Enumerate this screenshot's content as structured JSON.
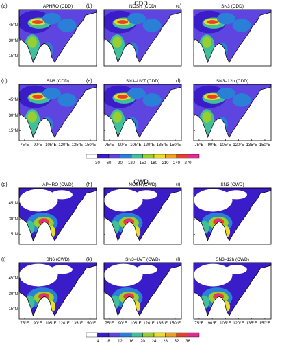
{
  "figure": {
    "sections": [
      {
        "title": "CDD",
        "panels": [
          {
            "tag": "(a)",
            "name": "APHRO (CDD)"
          },
          {
            "tag": "(b)",
            "name": "NOSH (CDD)"
          },
          {
            "tag": "(c)",
            "name": "SN3 (CDD)"
          },
          {
            "tag": "(d)",
            "name": "SN6 (CDD)"
          },
          {
            "tag": "(e)",
            "name": "SN3–UVT (CDD)"
          },
          {
            "tag": "(f)",
            "name": "SN3–12h (CDD)"
          }
        ],
        "colorbar": {
          "ticks": [
            "30",
            "60",
            "90",
            "120",
            "150",
            "180",
            "210",
            "240",
            "270"
          ],
          "colors": [
            "#ffffff",
            "#3a1cc8",
            "#5f45e0",
            "#2a7fd6",
            "#3fbf9a",
            "#96cf2f",
            "#e8dd24",
            "#f0a020",
            "#e8402c",
            "#e22a90"
          ]
        }
      },
      {
        "title": "CWD",
        "panels": [
          {
            "tag": "(g)",
            "name": "APHRO (CWD)"
          },
          {
            "tag": "(h)",
            "name": "NOSH (CWD)"
          },
          {
            "tag": "(i)",
            "name": "SN3 (CWD)"
          },
          {
            "tag": "(j)",
            "name": "SN6 (CWD)"
          },
          {
            "tag": "(k)",
            "name": "SN3–UVT (CWD)"
          },
          {
            "tag": "(l)",
            "name": "SN3–12h (CWD)"
          }
        ],
        "colorbar": {
          "ticks": [
            "4",
            "8",
            "12",
            "16",
            "20",
            "24",
            "28",
            "32",
            "36"
          ],
          "colors": [
            "#ffffff",
            "#3a1cc8",
            "#5f45e0",
            "#2a7fd6",
            "#3fbf9a",
            "#96cf2f",
            "#e8dd24",
            "#f0a020",
            "#e8402c",
            "#e22a90"
          ]
        }
      }
    ],
    "lon_ticks": [
      "75°E",
      "90°E",
      "105°E",
      "120°E",
      "135°E",
      "150°E"
    ],
    "lat_ticks": [
      "45°N",
      "30°N",
      "15°N"
    ]
  },
  "chart_data": [
    {
      "type": "heatmap",
      "title": "CDD",
      "panels": [
        "(a) APHRO (CDD)",
        "(b) NOSH (CDD)",
        "(c) SN3 (CDD)",
        "(d) SN6 (CDD)",
        "(e) SN3–UVT (CDD)",
        "(f) SN3–12h (CDD)"
      ],
      "x_ticks": [
        "75°E",
        "90°E",
        "105°E",
        "120°E",
        "135°E",
        "150°E"
      ],
      "y_ticks": [
        "45°N",
        "30°N",
        "15°N"
      ],
      "color_levels": [
        30,
        60,
        90,
        120,
        150,
        180,
        210,
        240,
        270
      ]
    },
    {
      "type": "heatmap",
      "title": "CWD",
      "panels": [
        "(g) APHRO (CWD)",
        "(h) NOSH (CWD)",
        "(i) SN3 (CWD)",
        "(j) SN6 (CWD)",
        "(k) SN3–UVT (CWD)",
        "(l) SN3–12h (CWD)"
      ],
      "x_ticks": [
        "75°E",
        "90°E",
        "105°E",
        "120°E",
        "135°E",
        "150°E"
      ],
      "y_ticks": [
        "45°N",
        "30°N",
        "15°N"
      ],
      "color_levels": [
        4,
        8,
        12,
        16,
        20,
        24,
        28,
        32,
        36
      ]
    }
  ]
}
